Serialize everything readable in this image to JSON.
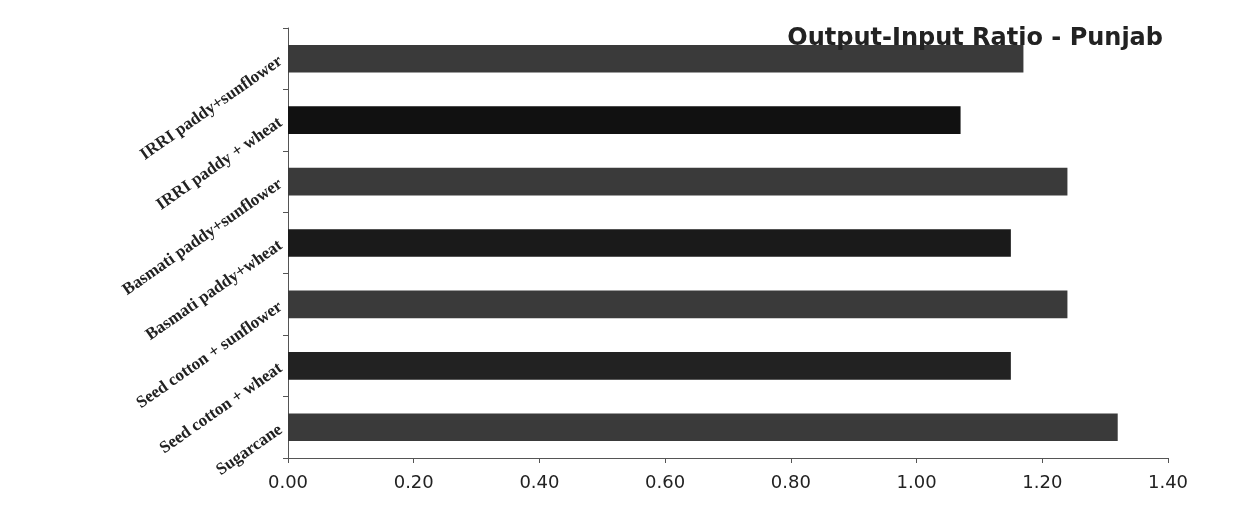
{
  "chart_data": {
    "type": "bar",
    "orientation": "horizontal",
    "title": "Output-Input Ratio - Punjab",
    "categories": [
      "IRRI paddy+sunflower",
      "IRRI paddy + wheat",
      "Basmati paddy+sunflower",
      "Basmati paddy+wheat",
      "Seed cotton + sunflower",
      "Seed cotton + wheat",
      "Sugarcane"
    ],
    "values": [
      1.17,
      1.07,
      1.24,
      1.15,
      1.24,
      1.15,
      1.32
    ],
    "colors": [
      "#3a3a3a",
      "#111111",
      "#3a3a3a",
      "#1a1a1a",
      "#3a3a3a",
      "#222222",
      "#3a3a3a"
    ],
    "xlim": [
      0,
      1.4
    ],
    "xticks": [
      {
        "value": 0,
        "label": "0.00"
      },
      {
        "value": 0.2,
        "label": "0.20"
      },
      {
        "value": 0.4,
        "label": "0.40"
      },
      {
        "value": 0.6,
        "label": "0.60"
      },
      {
        "value": 0.8,
        "label": "0.80"
      },
      {
        "value": 1,
        "label": "1.00"
      },
      {
        "value": 1.2,
        "label": "1.20"
      },
      {
        "value": 1.4,
        "label": "1.40"
      }
    ],
    "grid": false
  }
}
